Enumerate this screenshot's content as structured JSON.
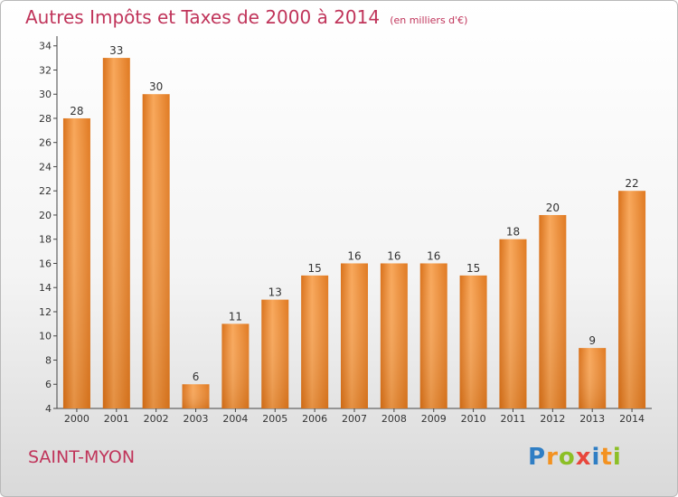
{
  "chart_data": {
    "type": "bar",
    "title": "Autres Impôts et Taxes de 2000 à 2014",
    "subtitle": "(en milliers d'€)",
    "categories": [
      "2000",
      "2001",
      "2002",
      "2003",
      "2004",
      "2005",
      "2006",
      "2007",
      "2008",
      "2009",
      "2010",
      "2011",
      "2012",
      "2013",
      "2014"
    ],
    "values": [
      28,
      33,
      30,
      6,
      11,
      13,
      15,
      16,
      16,
      16,
      15,
      18,
      20,
      9,
      22
    ],
    "yticks": [
      4,
      6,
      8,
      10,
      12,
      14,
      16,
      18,
      20,
      22,
      24,
      26,
      28,
      30,
      32,
      34
    ],
    "ylim": [
      4,
      34.5
    ],
    "grid": false,
    "bar_color": "#f08c30",
    "xlabel": "",
    "ylabel": ""
  },
  "footer": {
    "place": "SAINT-MYON",
    "logo": [
      {
        "ch": "P",
        "color": "#2f7ec4"
      },
      {
        "ch": "r",
        "color": "#f39221"
      },
      {
        "ch": "o",
        "color": "#8cbf26"
      },
      {
        "ch": "x",
        "color": "#e8463c"
      },
      {
        "ch": "i",
        "color": "#2f7ec4"
      },
      {
        "ch": "t",
        "color": "#f39221"
      },
      {
        "ch": "i",
        "color": "#8cbf26"
      }
    ]
  }
}
